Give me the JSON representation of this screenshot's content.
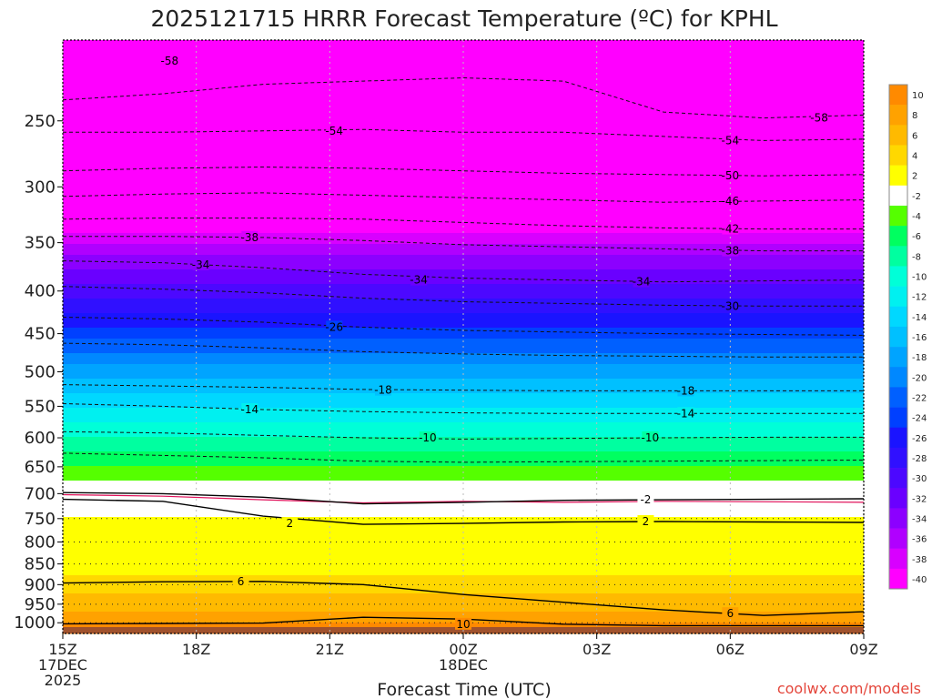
{
  "chart_data": {
    "type": "heatmap",
    "title": "2025121715 HRRR Forecast Temperature (ºC) for KPHL",
    "xlabel": "Forecast Time (UTC)",
    "credit": "coolwx.com/models",
    "y_axis": {
      "scale": "pressure (log)",
      "range": [
        1030,
        200
      ],
      "ticks": [
        250,
        300,
        350,
        400,
        450,
        500,
        550,
        600,
        650,
        700,
        750,
        800,
        850,
        900,
        950,
        1000
      ]
    },
    "x_axis": {
      "range_hours": [
        0,
        18
      ],
      "ticks": [
        {
          "hour": 0,
          "lines": [
            "15Z",
            "17DEC",
            "2025"
          ]
        },
        {
          "hour": 3,
          "lines": [
            "18Z"
          ]
        },
        {
          "hour": 6,
          "lines": [
            "21Z"
          ]
        },
        {
          "hour": 9,
          "lines": [
            "00Z",
            "18DEC"
          ]
        },
        {
          "hour": 12,
          "lines": [
            "03Z"
          ]
        },
        {
          "hour": 15,
          "lines": [
            "06Z"
          ]
        },
        {
          "hour": 18,
          "lines": [
            "09Z"
          ]
        }
      ]
    },
    "colorbar": {
      "labels": [
        "10",
        "8",
        "6",
        "4",
        "2",
        "-2",
        "-4",
        "-6",
        "-8",
        "-10",
        "-12",
        "-14",
        "-16",
        "-18",
        "-20",
        "-22",
        "-24",
        "-26",
        "-28",
        "-30",
        "-32",
        "-34",
        "-36",
        "-38",
        "-40"
      ],
      "colors": [
        "#ff8a00",
        "#ffa200",
        "#ffba00",
        "#ffd800",
        "#ffff00",
        "#ffffff",
        "#55ff00",
        "#00ff60",
        "#00ffa0",
        "#00ffd8",
        "#00f0f0",
        "#00d8ff",
        "#00c0ff",
        "#00a4ff",
        "#0088ff",
        "#0060ff",
        "#0040ff",
        "#1a14ff",
        "#3010ff",
        "#4c08ff",
        "#6a00ff",
        "#8c00ff",
        "#b000ff",
        "#d800ff",
        "#ff00ff"
      ]
    },
    "temperature_profile": [
      {
        "p": 1020,
        "t": 10
      },
      {
        "p": 1000,
        "t": 10
      },
      {
        "p": 950,
        "t": 7
      },
      {
        "p": 900,
        "t": 5
      },
      {
        "p": 850,
        "t": 3
      },
      {
        "p": 800,
        "t": 3
      },
      {
        "p": 750,
        "t": 2
      },
      {
        "p": 720,
        "t": 0
      },
      {
        "p": 700,
        "t": -2
      },
      {
        "p": 650,
        "t": -6
      },
      {
        "p": 600,
        "t": -10
      },
      {
        "p": 550,
        "t": -14
      },
      {
        "p": 500,
        "t": -19
      },
      {
        "p": 450,
        "t": -25
      },
      {
        "p": 400,
        "t": -31
      },
      {
        "p": 350,
        "t": -38
      },
      {
        "p": 300,
        "t": -48
      },
      {
        "p": 250,
        "t": -56
      },
      {
        "p": 200,
        "t": -60
      }
    ],
    "contours_dashed": [
      {
        "label": "-58",
        "pressure": [
          236,
          232,
          226,
          224,
          222,
          224,
          244,
          248,
          246
        ],
        "label_at": [
          {
            "hour": 17.0,
            "p": 248
          },
          {
            "hour": 2.4,
            "p": 212
          }
        ]
      },
      {
        "label": "-54",
        "pressure": [
          258,
          258,
          257,
          256,
          258,
          258,
          261,
          264,
          263
        ],
        "label_at": [
          {
            "hour": 6.1,
            "p": 257
          },
          {
            "hour": 15.0,
            "p": 264
          }
        ]
      },
      {
        "label": "-50",
        "pressure": [
          287,
          285,
          284,
          285,
          287,
          289,
          290,
          291,
          290
        ],
        "label_at": [
          {
            "hour": 15.0,
            "p": 291
          }
        ]
      },
      {
        "label": "-46",
        "pressure": [
          308,
          306,
          305,
          307,
          309,
          311,
          313,
          312,
          311
        ],
        "label_at": [
          {
            "hour": 15.0,
            "p": 312
          }
        ]
      },
      {
        "label": "-42",
        "pressure": [
          328,
          327,
          327,
          328,
          331,
          334,
          336,
          337,
          337
        ],
        "label_at": [
          {
            "hour": 15.0,
            "p": 337
          }
        ]
      },
      {
        "label": "-38",
        "pressure": [
          344,
          344,
          345,
          348,
          352,
          354,
          356,
          358,
          358
        ],
        "label_at": [
          {
            "hour": 4.2,
            "p": 345
          },
          {
            "hour": 15.0,
            "p": 358
          }
        ]
      },
      {
        "label": "-34",
        "pressure": [
          368,
          370,
          375,
          382,
          386,
          388,
          390,
          389,
          388
        ],
        "label_at": [
          {
            "hour": 3.1,
            "p": 372
          },
          {
            "hour": 8.0,
            "p": 388
          },
          {
            "hour": 13.0,
            "p": 390
          }
        ]
      },
      {
        "label": "-30",
        "pressure": [
          395,
          398,
          402,
          408,
          412,
          414,
          416,
          417,
          417
        ],
        "label_at": [
          {
            "hour": 15.0,
            "p": 417
          }
        ]
      },
      {
        "label": "-26",
        "pressure": [
          430,
          432,
          436,
          442,
          446,
          448,
          450,
          451,
          452
        ],
        "label_at": [
          {
            "hour": 6.1,
            "p": 442
          }
        ]
      },
      {
        "label": "-22",
        "pressure": [
          462,
          464,
          468,
          473,
          476,
          478,
          479,
          480,
          480
        ],
        "label_at": []
      },
      {
        "label": "-18",
        "pressure": [
          518,
          520,
          522,
          525,
          526,
          527,
          527,
          527,
          527
        ],
        "label_at": [
          {
            "hour": 7.2,
            "p": 526
          },
          {
            "hour": 14.0,
            "p": 527
          }
        ]
      },
      {
        "label": "-14",
        "pressure": [
          546,
          550,
          555,
          558,
          560,
          561,
          561,
          561,
          561
        ],
        "label_at": [
          {
            "hour": 4.2,
            "p": 555
          },
          {
            "hour": 14.0,
            "p": 561
          }
        ]
      },
      {
        "label": "-10",
        "pressure": [
          590,
          592,
          596,
          600,
          602,
          601,
          600,
          599,
          599
        ],
        "label_at": [
          {
            "hour": 8.2,
            "p": 600
          },
          {
            "hour": 13.2,
            "p": 600
          }
        ]
      },
      {
        "label": "-6",
        "pressure": [
          626,
          630,
          634,
          640,
          642,
          641,
          640,
          639,
          638
        ],
        "label_at": []
      }
    ],
    "contours_solid": [
      {
        "label": "-2",
        "pressure": [
          698,
          700,
          707,
          720,
          717,
          713,
          712,
          711,
          710
        ],
        "label_at": [
          {
            "hour": 13.1,
            "p": 712
          }
        ]
      },
      {
        "label": "2",
        "pressure": [
          711,
          715,
          745,
          762,
          760,
          757,
          756,
          757,
          758
        ],
        "label_at": [
          {
            "hour": 5.1,
            "p": 760
          },
          {
            "hour": 13.1,
            "p": 756
          }
        ]
      },
      {
        "label": "6",
        "pressure": [
          896,
          893,
          892,
          900,
          925,
          945,
          965,
          980,
          970
        ],
        "label_at": [
          {
            "hour": 4.0,
            "p": 893
          },
          {
            "hour": 15.0,
            "p": 975
          }
        ]
      },
      {
        "label": "10",
        "pressure": [
          1003,
          1002,
          1001,
          985,
          990,
          1004,
          1008,
          1008,
          1008
        ],
        "label_at": [
          {
            "hour": 9.0,
            "p": 1004
          }
        ]
      }
    ],
    "freezing_line": {
      "pressure": [
        702,
        705,
        712,
        718,
        715,
        717,
        715,
        716,
        717
      ]
    },
    "grid": "dotted",
    "legend": "right"
  }
}
